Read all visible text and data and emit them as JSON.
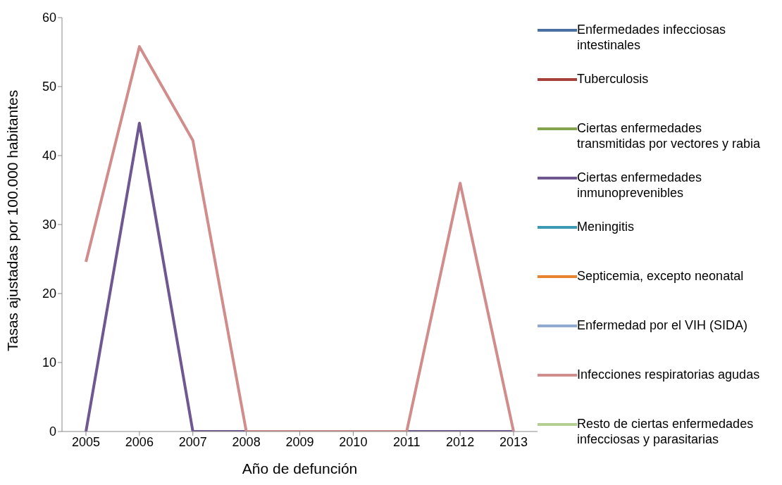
{
  "chart_data": {
    "type": "line",
    "xlabel": "Año de defunción",
    "ylabel": "Tasas ajustadas por 100.000 habitantes",
    "categories": [
      "2005",
      "2006",
      "2007",
      "2008",
      "2009",
      "2010",
      "2011",
      "2012",
      "2013"
    ],
    "ylim": [
      0,
      60
    ],
    "yticks": [
      0,
      10,
      20,
      30,
      40,
      50,
      60
    ],
    "grid": false,
    "legend": "right",
    "marker": "none",
    "line_style": "solid",
    "series": [
      {
        "name": "Enfermedades infecciosas intestinales",
        "color": "#4a6fa5",
        "values": [
          null,
          null,
          null,
          null,
          null,
          null,
          null,
          null,
          null
        ]
      },
      {
        "name": "Tuberculosis",
        "color": "#a5403d",
        "values": [
          null,
          null,
          null,
          null,
          null,
          null,
          null,
          null,
          null
        ]
      },
      {
        "name": "Ciertas enfermedades transmitidas por vectores y rabia",
        "color": "#84a44b",
        "values": [
          null,
          null,
          null,
          null,
          null,
          null,
          null,
          null,
          null
        ]
      },
      {
        "name": "Ciertas enfermedades inmunoprevenibles",
        "color": "#6f5791",
        "values": [
          0,
          44.7,
          0,
          0,
          0,
          0,
          0,
          0,
          0
        ]
      },
      {
        "name": "Meningitis",
        "color": "#3c9ab5",
        "values": [
          null,
          null,
          null,
          null,
          null,
          null,
          null,
          null,
          null
        ]
      },
      {
        "name": "Septicemia, excepto neonatal",
        "color": "#e8832f",
        "values": [
          null,
          null,
          null,
          null,
          null,
          null,
          null,
          null,
          null
        ]
      },
      {
        "name": "Enfermedad por el VIH (SIDA)",
        "color": "#90a9cf",
        "values": [
          null,
          null,
          null,
          null,
          null,
          null,
          null,
          null,
          null
        ]
      },
      {
        "name": "Infecciones respiratorias agudas",
        "color": "#d18c8c",
        "values": [
          24.6,
          55.8,
          42.2,
          0,
          0,
          0,
          0,
          36.0,
          0
        ]
      },
      {
        "name": "Resto de ciertas enfermedades infecciosas y parasitarias",
        "color": "#b3cf91",
        "values": [
          null,
          null,
          null,
          null,
          null,
          null,
          null,
          null,
          null
        ]
      }
    ]
  }
}
